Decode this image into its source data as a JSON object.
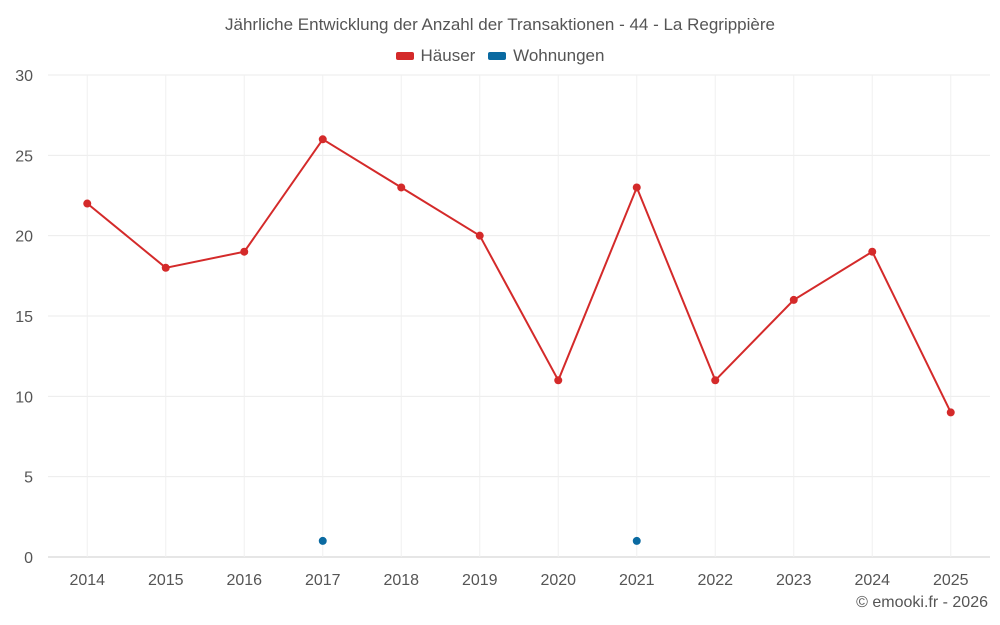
{
  "chart_data": {
    "type": "line",
    "title": "Jährliche Entwicklung der Anzahl der Transaktionen - 44 - La Regrippière",
    "categories": [
      "2014",
      "2015",
      "2016",
      "2017",
      "2018",
      "2019",
      "2020",
      "2021",
      "2022",
      "2023",
      "2024",
      "2025"
    ],
    "series": [
      {
        "name": "Häuser",
        "color": "#d42a2a",
        "values": [
          22,
          18,
          19,
          26,
          23,
          20,
          11,
          23,
          11,
          16,
          19,
          9
        ]
      },
      {
        "name": "Wohnungen",
        "color": "#0a6aa1",
        "values": [
          null,
          null,
          null,
          1,
          null,
          null,
          null,
          1,
          null,
          null,
          null,
          null
        ]
      }
    ],
    "ylim": [
      0,
      30
    ],
    "yticks": [
      0,
      5,
      10,
      15,
      20,
      25,
      30
    ],
    "xlabel": "",
    "ylabel": "",
    "grid": true,
    "legend": "top-center"
  },
  "credit": "© emooki.fr - 2026"
}
